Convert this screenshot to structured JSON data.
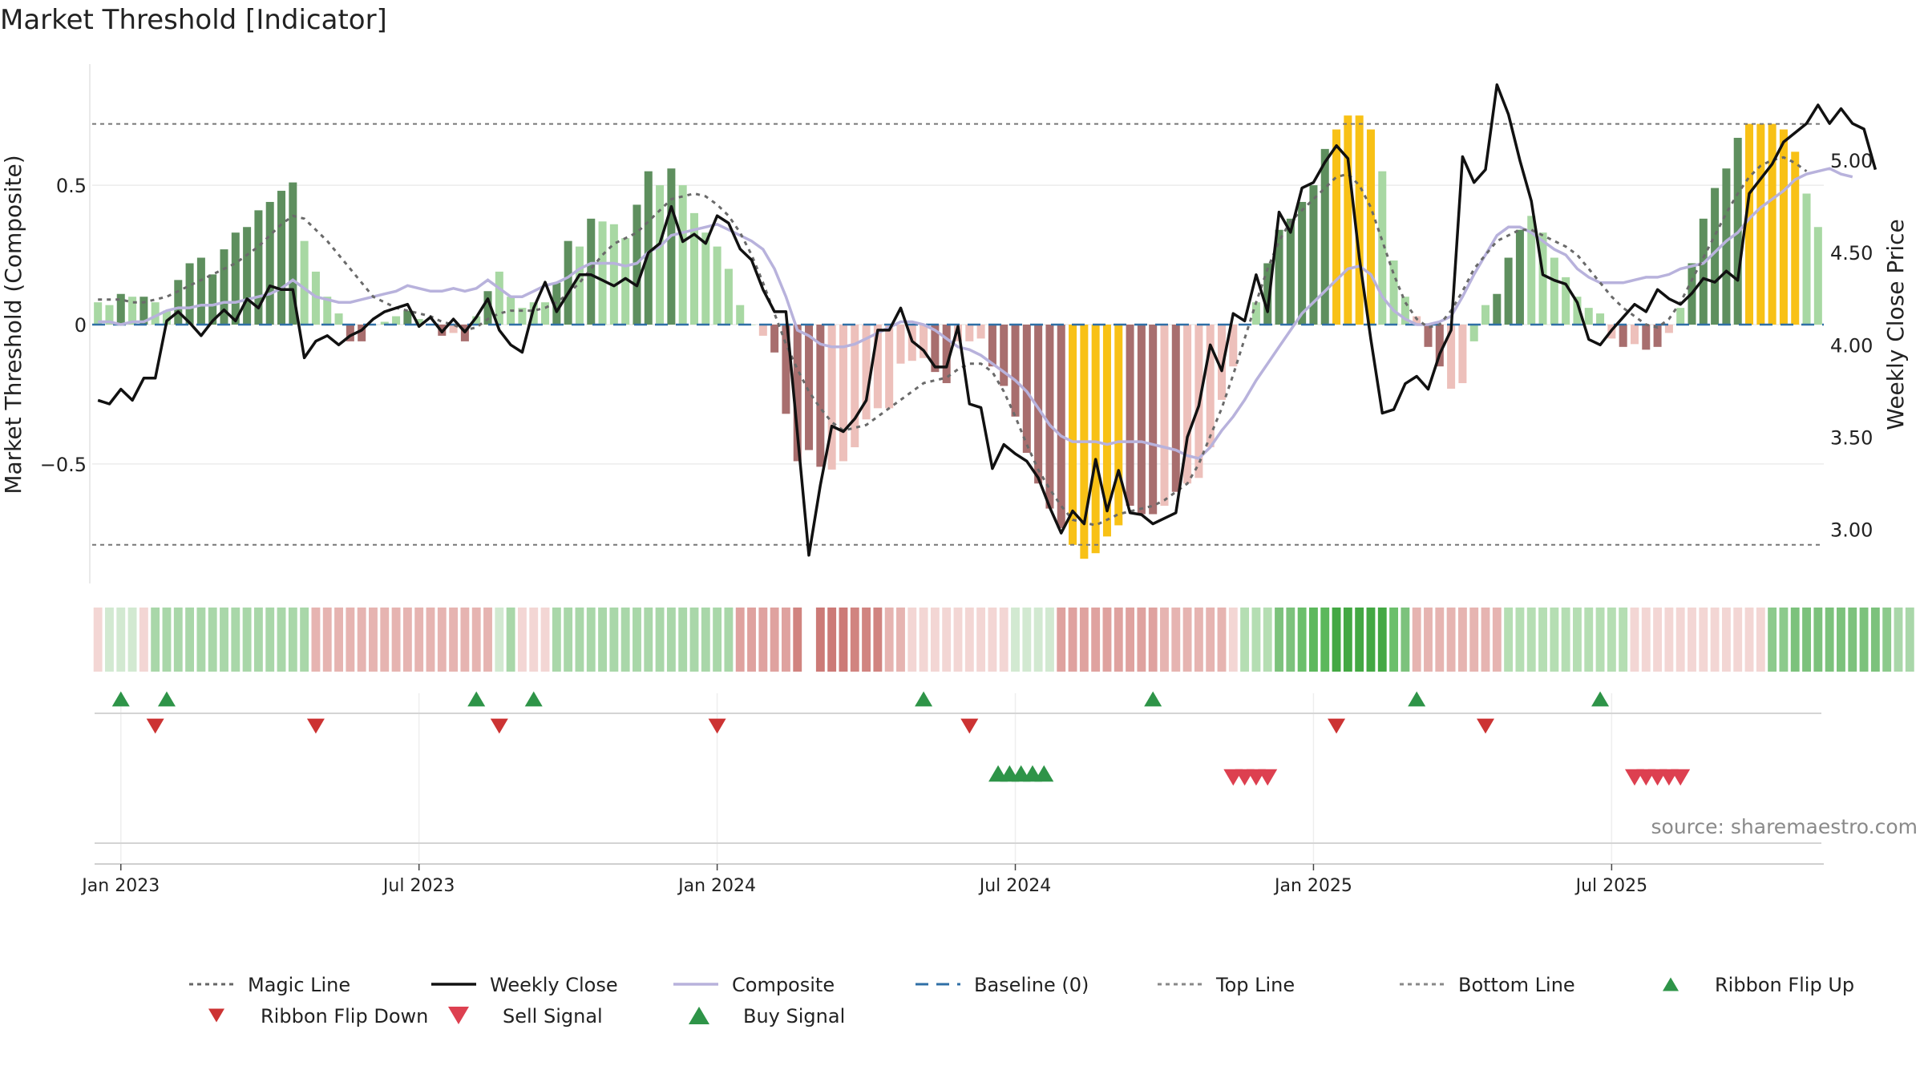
{
  "chart_data": {
    "type": "bar",
    "title": "Market Threshold [Indicator]",
    "ylabel": "Market Threshold (Composite)",
    "y2label": "Weekly Close Price",
    "source": "source: sharemaestro.com",
    "ylim": [
      -0.92,
      0.92
    ],
    "y2lim": [
      2.72,
      5.5
    ],
    "yticks": [
      {
        "v": 0.5,
        "label": "0.5"
      },
      {
        "v": 0,
        "label": "0"
      },
      {
        "v": -0.5,
        "label": "−0.5"
      }
    ],
    "y2ticks": [
      {
        "v": 5.0,
        "label": "5.00"
      },
      {
        "v": 4.5,
        "label": "4.50"
      },
      {
        "v": 4.0,
        "label": "4.00"
      },
      {
        "v": 3.5,
        "label": "3.50"
      },
      {
        "v": 3.0,
        "label": "3.00"
      }
    ],
    "xticks": [
      {
        "i": 2,
        "label": "Jan 2023"
      },
      {
        "i": 28,
        "label": "Jul 2023"
      },
      {
        "i": 54,
        "label": "Jan 2024"
      },
      {
        "i": 80,
        "label": "Jul 2024"
      },
      {
        "i": 106,
        "label": "Jan 2025"
      },
      {
        "i": 132,
        "label": "Jul 2025"
      }
    ],
    "top_line": 0.72,
    "bottom_line": -0.79,
    "legend_position": "bottom",
    "legend": [
      {
        "name": "Magic Line",
        "style": "dotted",
        "color": "#666666"
      },
      {
        "name": "Weekly Close",
        "style": "solid",
        "color": "#111111"
      },
      {
        "name": "Composite",
        "style": "solid",
        "color": "#b8b2dc"
      },
      {
        "name": "Baseline (0)",
        "style": "dashed",
        "color": "#2f6fa6"
      },
      {
        "name": "Top Line",
        "style": "dotted",
        "color": "#888888"
      },
      {
        "name": "Bottom Line",
        "style": "dotted",
        "color": "#888888"
      },
      {
        "name": "Ribbon Flip Up",
        "style": "triangle-up",
        "color": "#2e9448"
      },
      {
        "name": "Ribbon Flip Down",
        "style": "triangle-down",
        "color": "#cc3333"
      },
      {
        "name": "Sell Signal",
        "style": "triangle-down",
        "color": "#dd4050"
      },
      {
        "name": "Buy Signal",
        "style": "triangle-up",
        "color": "#2e9448"
      }
    ],
    "colors": {
      "dark_green": "#5e8f5e",
      "light_green": "#a8d8a3",
      "dark_red": "#a86e6e",
      "light_red": "#edc0bb",
      "extreme": "#f8c116"
    },
    "bars": [
      0.08,
      0.07,
      0.11,
      0.1,
      0.1,
      0.08,
      0.05,
      0.16,
      0.22,
      0.24,
      0.18,
      0.27,
      0.33,
      0.35,
      0.41,
      0.44,
      0.48,
      0.51,
      0.3,
      0.19,
      0.1,
      0.04,
      -0.06,
      -0.06,
      0.0,
      0.01,
      0.03,
      0.05,
      0.02,
      0.0,
      -0.04,
      -0.03,
      -0.06,
      0.03,
      0.12,
      0.19,
      0.1,
      0.06,
      0.08,
      0.08,
      0.15,
      0.3,
      0.28,
      0.38,
      0.37,
      0.36,
      0.31,
      0.43,
      0.55,
      0.5,
      0.56,
      0.5,
      0.4,
      0.33,
      0.28,
      0.2,
      0.07,
      0.0,
      -0.04,
      -0.1,
      -0.32,
      -0.49,
      -0.45,
      -0.51,
      -0.52,
      -0.49,
      -0.44,
      -0.34,
      -0.3,
      -0.3,
      -0.14,
      -0.13,
      -0.12,
      -0.17,
      -0.21,
      -0.06,
      -0.06,
      -0.05,
      -0.15,
      -0.22,
      -0.33,
      -0.46,
      -0.57,
      -0.66,
      -0.73,
      -0.79,
      -0.84,
      -0.82,
      -0.76,
      -0.72,
      -0.65,
      -0.68,
      -0.68,
      -0.65,
      -0.6,
      -0.57,
      -0.55,
      -0.44,
      -0.27,
      -0.15,
      0.0,
      0.08,
      0.22,
      0.34,
      0.38,
      0.44,
      0.5,
      0.63,
      0.7,
      0.75,
      0.75,
      0.7,
      0.55,
      0.23,
      0.1,
      0.03,
      -0.08,
      -0.15,
      -0.23,
      -0.21,
      -0.06,
      0.07,
      0.11,
      0.24,
      0.34,
      0.39,
      0.33,
      0.24,
      0.17,
      0.1,
      0.06,
      0.04,
      -0.05,
      -0.08,
      -0.07,
      -0.09,
      -0.08,
      -0.03,
      0.06,
      0.22,
      0.38,
      0.49,
      0.56,
      0.67,
      0.72,
      0.72,
      0.72,
      0.7,
      0.62,
      0.47,
      0.35
    ],
    "bar_colors": [
      "light_green",
      "light_green",
      "dark_green",
      "light_green",
      "dark_green",
      "light_green",
      "light_green",
      "dark_green",
      "dark_green",
      "dark_green",
      "dark_green",
      "dark_green",
      "dark_green",
      "dark_green",
      "dark_green",
      "dark_green",
      "dark_green",
      "dark_green",
      "light_green",
      "light_green",
      "light_green",
      "light_green",
      "dark_red",
      "dark_red",
      "light_green",
      "light_green",
      "light_green",
      "dark_green",
      "light_green",
      "light_green",
      "dark_red",
      "light_red",
      "dark_red",
      "light_green",
      "dark_green",
      "light_green",
      "light_green",
      "light_green",
      "light_green",
      "light_green",
      "dark_green",
      "dark_green",
      "light_green",
      "dark_green",
      "light_green",
      "light_green",
      "light_green",
      "dark_green",
      "dark_green",
      "light_green",
      "dark_green",
      "light_green",
      "light_green",
      "light_green",
      "light_green",
      "light_green",
      "light_green",
      "light_green",
      "light_red",
      "dark_red",
      "dark_red",
      "dark_red",
      "dark_red",
      "dark_red",
      "light_red",
      "light_red",
      "light_red",
      "light_red",
      "light_red",
      "light_red",
      "light_red",
      "light_red",
      "light_red",
      "dark_red",
      "dark_red",
      "light_red",
      "light_red",
      "light_red",
      "dark_red",
      "dark_red",
      "dark_red",
      "dark_red",
      "dark_red",
      "dark_red",
      "dark_red",
      "extreme",
      "extreme",
      "extreme",
      "extreme",
      "extreme",
      "dark_red",
      "dark_red",
      "dark_red",
      "light_red",
      "dark_red",
      "light_red",
      "light_red",
      "light_red",
      "light_red",
      "light_red",
      "light_green",
      "light_green",
      "dark_green",
      "dark_green",
      "dark_green",
      "dark_green",
      "dark_green",
      "dark_green",
      "extreme",
      "extreme",
      "extreme",
      "extreme",
      "light_green",
      "light_green",
      "light_green",
      "light_red",
      "dark_red",
      "dark_red",
      "light_red",
      "light_red",
      "light_green",
      "light_green",
      "dark_green",
      "dark_green",
      "dark_green",
      "light_green",
      "light_green",
      "light_green",
      "light_green",
      "light_green",
      "light_green",
      "light_green",
      "light_red",
      "dark_red",
      "light_red",
      "dark_red",
      "dark_red",
      "light_red",
      "light_green",
      "dark_green",
      "dark_green",
      "dark_green",
      "dark_green",
      "dark_green",
      "extreme",
      "extreme",
      "extreme",
      "extreme",
      "extreme",
      "light_green",
      "light_green",
      "light_green"
    ],
    "weekly_close": [
      3.7,
      3.68,
      3.76,
      3.7,
      3.82,
      3.82,
      4.13,
      4.18,
      4.12,
      4.05,
      4.13,
      4.19,
      4.13,
      4.25,
      4.2,
      4.32,
      4.3,
      4.3,
      3.93,
      4.02,
      4.05,
      4.0,
      4.05,
      4.08,
      4.14,
      4.18,
      4.2,
      4.22,
      4.1,
      4.15,
      4.07,
      4.14,
      4.07,
      4.15,
      4.25,
      4.08,
      4.0,
      3.96,
      4.2,
      4.34,
      4.18,
      4.28,
      4.38,
      4.38,
      4.35,
      4.32,
      4.36,
      4.32,
      4.5,
      4.55,
      4.75,
      4.56,
      4.6,
      4.55,
      4.7,
      4.66,
      4.52,
      4.46,
      4.3,
      4.18,
      4.18,
      3.52,
      2.86,
      3.24,
      3.56,
      3.53,
      3.6,
      3.7,
      4.08,
      4.08,
      4.2,
      4.02,
      3.97,
      3.88,
      3.88,
      4.1,
      3.68,
      3.66,
      3.33,
      3.46,
      3.41,
      3.37,
      3.28,
      3.12,
      2.98,
      3.1,
      3.03,
      3.38,
      3.1,
      3.32,
      3.09,
      3.08,
      3.03,
      3.06,
      3.09,
      3.5,
      3.67,
      4.0,
      3.86,
      4.17,
      4.13,
      4.38,
      4.18,
      4.72,
      4.61,
      4.85,
      4.88,
      4.99,
      5.08,
      5.01,
      4.47,
      4.03,
      3.63,
      3.65,
      3.79,
      3.83,
      3.76,
      3.95,
      4.08,
      5.02,
      4.88,
      4.95,
      5.41,
      5.25,
      5.0,
      4.78,
      4.38,
      4.35,
      4.33,
      4.23,
      4.03,
      4.0,
      4.08,
      4.15,
      4.22,
      4.18,
      4.3,
      4.25,
      4.22,
      4.28,
      4.36,
      4.34,
      4.4,
      4.35,
      4.82,
      4.9,
      4.98,
      5.1,
      5.15,
      5.2,
      5.3,
      5.2,
      5.28,
      5.2,
      5.17,
      4.95
    ],
    "composite": [
      0.01,
      0.01,
      0.0,
      0.01,
      0.01,
      0.03,
      0.05,
      0.06,
      0.06,
      0.07,
      0.07,
      0.08,
      0.08,
      0.09,
      0.1,
      0.11,
      0.13,
      0.16,
      0.13,
      0.1,
      0.09,
      0.08,
      0.08,
      0.09,
      0.1,
      0.11,
      0.12,
      0.14,
      0.13,
      0.12,
      0.12,
      0.13,
      0.12,
      0.13,
      0.16,
      0.13,
      0.1,
      0.1,
      0.12,
      0.14,
      0.15,
      0.17,
      0.2,
      0.22,
      0.22,
      0.22,
      0.21,
      0.22,
      0.26,
      0.28,
      0.32,
      0.33,
      0.34,
      0.35,
      0.36,
      0.34,
      0.32,
      0.3,
      0.27,
      0.2,
      0.1,
      -0.02,
      -0.04,
      -0.07,
      -0.08,
      -0.08,
      -0.07,
      -0.05,
      -0.03,
      -0.01,
      0.01,
      0.01,
      0.0,
      -0.02,
      -0.05,
      -0.08,
      -0.09,
      -0.11,
      -0.14,
      -0.17,
      -0.2,
      -0.24,
      -0.3,
      -0.36,
      -0.4,
      -0.42,
      -0.42,
      -0.42,
      -0.43,
      -0.42,
      -0.42,
      -0.42,
      -0.43,
      -0.44,
      -0.45,
      -0.47,
      -0.48,
      -0.44,
      -0.38,
      -0.33,
      -0.27,
      -0.2,
      -0.14,
      -0.08,
      -0.02,
      0.04,
      0.08,
      0.12,
      0.16,
      0.2,
      0.21,
      0.18,
      0.1,
      0.05,
      0.02,
      0.0,
      0.0,
      0.01,
      0.03,
      0.1,
      0.18,
      0.25,
      0.32,
      0.35,
      0.35,
      0.33,
      0.3,
      0.27,
      0.25,
      0.2,
      0.17,
      0.15,
      0.15,
      0.15,
      0.16,
      0.17,
      0.17,
      0.18,
      0.2,
      0.21,
      0.22,
      0.26,
      0.3,
      0.33,
      0.38,
      0.42,
      0.45,
      0.48,
      0.52,
      0.54,
      0.55,
      0.56,
      0.54,
      0.53
    ],
    "magic_line": [
      0.09,
      0.09,
      0.09,
      0.08,
      0.08,
      0.09,
      0.1,
      0.12,
      0.14,
      0.16,
      0.18,
      0.2,
      0.22,
      0.25,
      0.28,
      0.32,
      0.36,
      0.39,
      0.38,
      0.34,
      0.3,
      0.25,
      0.2,
      0.15,
      0.1,
      0.08,
      0.06,
      0.05,
      0.04,
      0.03,
      0.01,
      0.0,
      -0.02,
      -0.01,
      0.02,
      0.04,
      0.05,
      0.05,
      0.05,
      0.06,
      0.08,
      0.11,
      0.15,
      0.2,
      0.25,
      0.29,
      0.31,
      0.33,
      0.37,
      0.41,
      0.45,
      0.46,
      0.47,
      0.46,
      0.43,
      0.39,
      0.33,
      0.25,
      0.15,
      0.04,
      -0.07,
      -0.16,
      -0.24,
      -0.3,
      -0.35,
      -0.38,
      -0.37,
      -0.36,
      -0.33,
      -0.3,
      -0.27,
      -0.24,
      -0.21,
      -0.2,
      -0.19,
      -0.16,
      -0.14,
      -0.14,
      -0.17,
      -0.24,
      -0.33,
      -0.43,
      -0.52,
      -0.59,
      -0.65,
      -0.7,
      -0.71,
      -0.72,
      -0.7,
      -0.68,
      -0.67,
      -0.66,
      -0.65,
      -0.63,
      -0.6,
      -0.57,
      -0.5,
      -0.4,
      -0.3,
      -0.18,
      -0.05,
      0.08,
      0.2,
      0.3,
      0.37,
      0.41,
      0.45,
      0.49,
      0.53,
      0.54,
      0.5,
      0.42,
      0.3,
      0.18,
      0.08,
      0.02,
      -0.01,
      0.0,
      0.05,
      0.12,
      0.2,
      0.25,
      0.3,
      0.32,
      0.34,
      0.34,
      0.32,
      0.3,
      0.28,
      0.25,
      0.2,
      0.15,
      0.1,
      0.06,
      0.03,
      0.0,
      -0.01,
      0.02,
      0.08,
      0.16,
      0.24,
      0.32,
      0.4,
      0.47,
      0.53,
      0.57,
      0.59,
      0.6,
      0.58,
      0.55
    ],
    "ribbon_colors": [
      "#f3d6d4",
      "#d2e9d1",
      "#d2e9d1",
      "#d2e9d1",
      "#f3d6d4",
      "#a9d7a9",
      "#a9d7a9",
      "#a9d7a9",
      "#a9d7a9",
      "#a9d7a9",
      "#a9d7a9",
      "#a9d7a9",
      "#a9d7a9",
      "#a9d7a9",
      "#a9d7a9",
      "#a9d7a9",
      "#a9d7a9",
      "#a9d7a9",
      "#a9d7a9",
      "#e6b4b1",
      "#e6b4b1",
      "#e6b4b1",
      "#e6b4b1",
      "#e6b4b1",
      "#e6b4b1",
      "#e6b4b1",
      "#e6b4b1",
      "#e6b4b1",
      "#e6b4b1",
      "#e6b4b1",
      "#e6b4b1",
      "#e6b4b1",
      "#e6b4b1",
      "#e6b4b1",
      "#e6b4b1",
      "#d2e9d1",
      "#a9d7a9",
      "#f3d6d4",
      "#f3d6d4",
      "#f3d6d4",
      "#a9d7a9",
      "#a9d7a9",
      "#a9d7a9",
      "#a9d7a9",
      "#a9d7a9",
      "#a9d7a9",
      "#a9d7a9",
      "#a9d7a9",
      "#a9d7a9",
      "#a9d7a9",
      "#a9d7a9",
      "#a9d7a9",
      "#a9d7a9",
      "#a9d7a9",
      "#a9d7a9",
      "#a9d7a9",
      "#dfa29f",
      "#dfa29f",
      "#dfa29f",
      "#dfa29f",
      "#dfa29f",
      "#d18480",
      "#ffffff",
      "#cc7a77",
      "#cc7a77",
      "#cc7a77",
      "#d18480",
      "#d18480",
      "#d18480",
      "#e6b4b1",
      "#e6b4b1",
      "#f3d6d4",
      "#f3d6d4",
      "#f3d6d4",
      "#f3d6d4",
      "#f3d6d4",
      "#f3d6d4",
      "#f3d6d4",
      "#f3d6d4",
      "#f3d6d4",
      "#d2e9d1",
      "#d2e9d1",
      "#d2e9d1",
      "#d2e9d1",
      "#dfa29f",
      "#dfa29f",
      "#dfa29f",
      "#dfa29f",
      "#dfa29f",
      "#dfa29f",
      "#dfa29f",
      "#dfa29f",
      "#dfa29f",
      "#e6b4b1",
      "#e6b4b1",
      "#e6b4b1",
      "#e6b4b1",
      "#e6b4b1",
      "#e6b4b1",
      "#f3d6d4",
      "#b5deb3",
      "#b5deb3",
      "#b5deb3",
      "#7cc27c",
      "#7cc27c",
      "#6bbf6b",
      "#5cb85c",
      "#5cb85c",
      "#43a843",
      "#43a843",
      "#43a843",
      "#43a843",
      "#43a843",
      "#6bbf6b",
      "#7cc27c",
      "#e6b4b1",
      "#e6b4b1",
      "#e6b4b1",
      "#e6b4b1",
      "#e6b4b1",
      "#e6b4b1",
      "#e6b4b1",
      "#e6b4b1",
      "#b5deb3",
      "#b5deb3",
      "#b5deb3",
      "#b5deb3",
      "#b5deb3",
      "#b5deb3",
      "#b5deb3",
      "#b5deb3",
      "#b5deb3",
      "#b5deb3",
      "#b5deb3",
      "#f3d6d4",
      "#f3d6d4",
      "#f3d6d4",
      "#f3d6d4",
      "#f3d6d4",
      "#f3d6d4",
      "#f3d6d4",
      "#f3d6d4",
      "#f3d6d4",
      "#f3d6d4",
      "#f3d6d4",
      "#f3d6d4",
      "#8cca8c",
      "#8cca8c",
      "#7cc27c",
      "#7cc27c",
      "#7cc27c",
      "#7cc27c",
      "#7cc27c",
      "#7cc27c",
      "#7cc27c",
      "#7cc27c",
      "#8cca8c",
      "#a9d7a9",
      "#a9d7a9"
    ],
    "ribbon_flip_up": [
      2,
      6,
      33,
      38,
      72,
      92,
      115,
      131
    ],
    "ribbon_flip_down": [
      5,
      19,
      35,
      54,
      76,
      108,
      121
    ],
    "buy_signal": [
      78.5,
      79.5,
      80.5,
      81.5,
      82.5
    ],
    "sell_signal": [
      99,
      100,
      101,
      102
    ],
    "sell_signal_b": [
      134,
      135,
      136,
      137,
      138
    ]
  }
}
